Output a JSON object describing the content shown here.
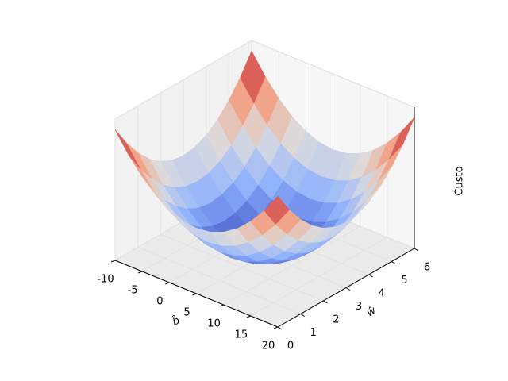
{
  "chart_data": {
    "type": "surface",
    "x_label": "b̂",
    "y_label": "ŵ",
    "z_label": "Custo",
    "colormap": "coolwarm",
    "x": [
      -10,
      -7.5,
      -5,
      -2.5,
      0,
      2.5,
      5,
      7.5,
      10,
      12.5,
      15,
      17.5,
      20
    ],
    "y": [
      0,
      0.5,
      1,
      1.5,
      2,
      2.5,
      3,
      3.5,
      4,
      4.5,
      5,
      5.5,
      6
    ],
    "z": [
      [
        1,
        0.847,
        0.722,
        0.625,
        0.556,
        0.514,
        0.5,
        0.514,
        0.556,
        0.625,
        0.722,
        0.847,
        1
      ],
      [
        0.847,
        0.694,
        0.569,
        0.472,
        0.403,
        0.361,
        0.347,
        0.361,
        0.403,
        0.472,
        0.569,
        0.694,
        0.847
      ],
      [
        0.722,
        0.569,
        0.444,
        0.347,
        0.278,
        0.236,
        0.222,
        0.236,
        0.278,
        0.347,
        0.444,
        0.569,
        0.722
      ],
      [
        0.625,
        0.472,
        0.347,
        0.25,
        0.181,
        0.139,
        0.125,
        0.139,
        0.181,
        0.25,
        0.347,
        0.472,
        0.625
      ],
      [
        0.556,
        0.403,
        0.278,
        0.181,
        0.112,
        0.07,
        0.056,
        0.07,
        0.112,
        0.181,
        0.278,
        0.403,
        0.556
      ],
      [
        0.514,
        0.361,
        0.236,
        0.139,
        0.07,
        0.028,
        0.014,
        0.028,
        0.07,
        0.139,
        0.236,
        0.361,
        0.514
      ],
      [
        0.5,
        0.347,
        0.222,
        0.125,
        0.056,
        0.014,
        0,
        0.014,
        0.056,
        0.125,
        0.222,
        0.347,
        0.5
      ],
      [
        0.514,
        0.361,
        0.236,
        0.139,
        0.07,
        0.028,
        0.014,
        0.028,
        0.07,
        0.139,
        0.236,
        0.361,
        0.514
      ],
      [
        0.556,
        0.403,
        0.278,
        0.181,
        0.112,
        0.07,
        0.056,
        0.07,
        0.112,
        0.181,
        0.278,
        0.403,
        0.556
      ],
      [
        0.625,
        0.472,
        0.347,
        0.25,
        0.181,
        0.139,
        0.125,
        0.139,
        0.181,
        0.25,
        0.347,
        0.472,
        0.625
      ],
      [
        0.722,
        0.569,
        0.444,
        0.347,
        0.278,
        0.236,
        0.222,
        0.236,
        0.278,
        0.347,
        0.444,
        0.569,
        0.722
      ],
      [
        0.847,
        0.694,
        0.569,
        0.472,
        0.403,
        0.361,
        0.347,
        0.361,
        0.403,
        0.472,
        0.569,
        0.694,
        0.847
      ],
      [
        1,
        0.847,
        0.722,
        0.625,
        0.556,
        0.514,
        0.5,
        0.514,
        0.556,
        0.625,
        0.722,
        0.847,
        1
      ]
    ],
    "xlim": [
      -10,
      20
    ],
    "ylim": [
      0,
      6
    ],
    "zlim": [
      0,
      1.08
    ],
    "xticks": [
      -10,
      -5,
      0,
      5,
      10,
      15,
      20
    ],
    "yticks": [
      0,
      1,
      2,
      3,
      4,
      5,
      6
    ],
    "grid": true
  }
}
